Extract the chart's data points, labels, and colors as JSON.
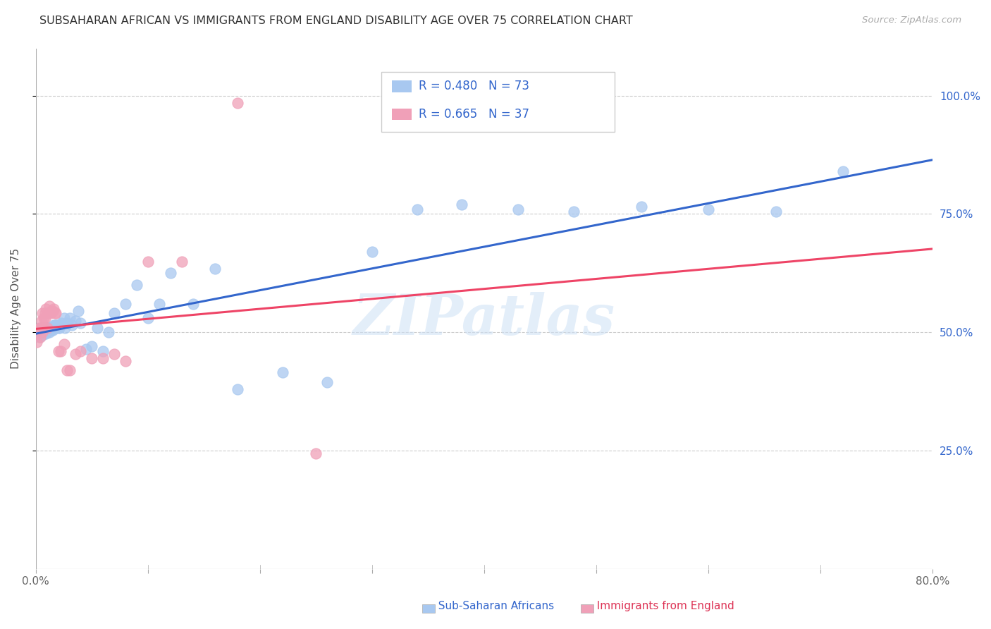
{
  "title": "SUBSAHARAN AFRICAN VS IMMIGRANTS FROM ENGLAND DISABILITY AGE OVER 75 CORRELATION CHART",
  "source": "Source: ZipAtlas.com",
  "ylabel": "Disability Age Over 75",
  "blue_color": "#a8c8f0",
  "pink_color": "#f0a0b8",
  "trend_blue": "#3366cc",
  "trend_pink": "#ee4466",
  "watermark": "ZIPatlas",
  "legend_blue_r": "R = 0.480",
  "legend_blue_n": "N = 73",
  "legend_pink_r": "R = 0.665",
  "legend_pink_n": "N = 37",
  "blue_scatter_x": [
    0.001,
    0.002,
    0.003,
    0.003,
    0.004,
    0.004,
    0.005,
    0.005,
    0.006,
    0.006,
    0.006,
    0.007,
    0.007,
    0.008,
    0.008,
    0.009,
    0.009,
    0.01,
    0.01,
    0.01,
    0.011,
    0.011,
    0.012,
    0.012,
    0.013,
    0.013,
    0.014,
    0.014,
    0.015,
    0.015,
    0.016,
    0.016,
    0.017,
    0.018,
    0.018,
    0.019,
    0.02,
    0.021,
    0.022,
    0.023,
    0.025,
    0.026,
    0.028,
    0.03,
    0.032,
    0.035,
    0.038,
    0.04,
    0.045,
    0.05,
    0.055,
    0.06,
    0.065,
    0.07,
    0.08,
    0.09,
    0.1,
    0.11,
    0.12,
    0.14,
    0.16,
    0.18,
    0.22,
    0.26,
    0.3,
    0.34,
    0.38,
    0.43,
    0.48,
    0.54,
    0.6,
    0.66,
    0.72
  ],
  "blue_scatter_y": [
    0.5,
    0.495,
    0.49,
    0.505,
    0.51,
    0.498,
    0.5,
    0.495,
    0.505,
    0.51,
    0.495,
    0.51,
    0.505,
    0.5,
    0.51,
    0.498,
    0.505,
    0.51,
    0.505,
    0.5,
    0.505,
    0.51,
    0.5,
    0.51,
    0.505,
    0.51,
    0.51,
    0.505,
    0.51,
    0.505,
    0.515,
    0.51,
    0.515,
    0.51,
    0.515,
    0.515,
    0.51,
    0.51,
    0.515,
    0.52,
    0.53,
    0.51,
    0.52,
    0.53,
    0.515,
    0.525,
    0.545,
    0.52,
    0.465,
    0.47,
    0.51,
    0.46,
    0.5,
    0.54,
    0.56,
    0.6,
    0.53,
    0.56,
    0.625,
    0.56,
    0.635,
    0.38,
    0.415,
    0.395,
    0.67,
    0.76,
    0.77,
    0.76,
    0.755,
    0.765,
    0.76,
    0.755,
    0.84
  ],
  "pink_scatter_x": [
    0.001,
    0.002,
    0.003,
    0.004,
    0.005,
    0.005,
    0.006,
    0.006,
    0.007,
    0.007,
    0.008,
    0.008,
    0.009,
    0.01,
    0.011,
    0.012,
    0.013,
    0.014,
    0.015,
    0.016,
    0.017,
    0.018,
    0.02,
    0.022,
    0.025,
    0.028,
    0.03,
    0.035,
    0.04,
    0.05,
    0.06,
    0.07,
    0.08,
    0.1,
    0.13,
    0.18,
    0.25
  ],
  "pink_scatter_y": [
    0.48,
    0.505,
    0.51,
    0.49,
    0.525,
    0.51,
    0.5,
    0.54,
    0.53,
    0.51,
    0.53,
    0.54,
    0.55,
    0.51,
    0.54,
    0.555,
    0.54,
    0.545,
    0.545,
    0.55,
    0.54,
    0.54,
    0.46,
    0.46,
    0.475,
    0.42,
    0.42,
    0.455,
    0.46,
    0.445,
    0.445,
    0.455,
    0.44,
    0.65,
    0.65,
    0.985,
    0.245
  ],
  "xlim": [
    0.0,
    0.8
  ],
  "ylim": [
    0.0,
    1.1
  ],
  "xtick_positions": [
    0.0,
    0.1,
    0.2,
    0.3,
    0.4,
    0.5,
    0.6,
    0.7,
    0.8
  ],
  "ytick_positions": [
    0.25,
    0.5,
    0.75,
    1.0
  ],
  "ytick_labels": [
    "25.0%",
    "50.0%",
    "75.0%",
    "100.0%"
  ]
}
